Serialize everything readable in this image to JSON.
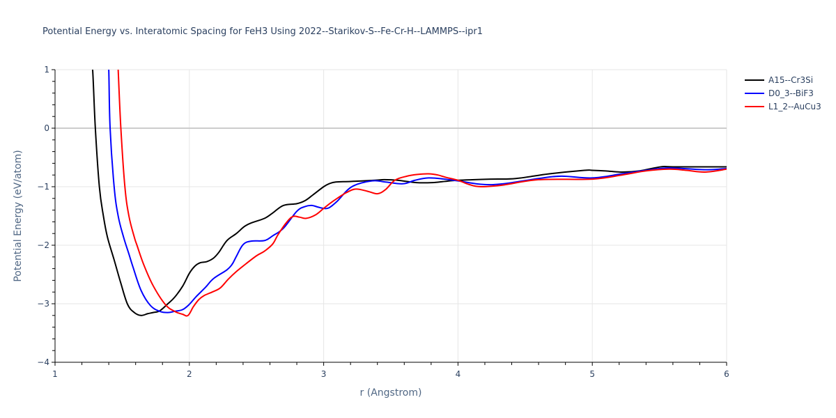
{
  "chart_data": {
    "type": "line",
    "title": "Potential Energy vs. Interatomic Spacing for FeH3 Using 2022--Starikov-S--Fe-Cr-H--LAMMPS--ipr1",
    "xlabel": "r (Angstrom)",
    "ylabel": "Potential Energy (eV/atom)",
    "xlim": [
      1,
      6
    ],
    "ylim": [
      -4,
      1
    ],
    "xticks": [
      1,
      2,
      3,
      4,
      5,
      6
    ],
    "xtick_labels": [
      "1",
      "2",
      "3",
      "4",
      "5",
      "6"
    ],
    "yticks": [
      1,
      0,
      -1,
      -2,
      -3,
      -4
    ],
    "ytick_labels": [
      "1",
      "0",
      "−1",
      "−2",
      "−3",
      "−4"
    ],
    "minor_tick_step": 0.2,
    "grid": true,
    "legend_position": "top-right-outside",
    "series": [
      {
        "name": "A15--Cr3Si",
        "color": "#000000",
        "x": [
          1.26,
          1.28,
          1.3,
          1.33,
          1.36,
          1.39,
          1.44,
          1.49,
          1.54,
          1.59,
          1.64,
          1.69,
          1.73,
          1.78,
          1.84,
          1.89,
          1.95,
          2.0,
          2.04,
          2.08,
          2.13,
          2.18,
          2.22,
          2.28,
          2.35,
          2.41,
          2.46,
          2.56,
          2.62,
          2.7,
          2.8,
          2.86,
          2.92,
          3.0,
          3.04,
          3.09,
          3.2,
          3.38,
          3.45,
          3.55,
          3.69,
          3.81,
          3.9,
          4.0,
          4.25,
          4.43,
          4.68,
          4.94,
          5.0,
          5.1,
          5.22,
          5.35,
          5.51,
          5.6,
          6.0
        ],
        "y": [
          1.5,
          1.0,
          0.0,
          -1.0,
          -1.5,
          -1.86,
          -2.25,
          -2.65,
          -3.01,
          -3.15,
          -3.2,
          -3.17,
          -3.15,
          -3.12,
          -3.0,
          -2.89,
          -2.7,
          -2.48,
          -2.36,
          -2.3,
          -2.28,
          -2.22,
          -2.12,
          -1.92,
          -1.8,
          -1.68,
          -1.62,
          -1.54,
          -1.45,
          -1.32,
          -1.29,
          -1.24,
          -1.14,
          -1.0,
          -0.95,
          -0.92,
          -0.91,
          -0.89,
          -0.88,
          -0.89,
          -0.93,
          -0.93,
          -0.91,
          -0.89,
          -0.87,
          -0.86,
          -0.78,
          -0.72,
          -0.72,
          -0.73,
          -0.75,
          -0.73,
          -0.66,
          -0.66,
          -0.66
        ]
      },
      {
        "name": "D0_3--BiF3",
        "color": "#0000ff",
        "x": [
          1.39,
          1.4,
          1.41,
          1.44,
          1.47,
          1.51,
          1.55,
          1.58,
          1.64,
          1.71,
          1.78,
          1.84,
          1.89,
          1.95,
          2.0,
          2.05,
          2.12,
          2.18,
          2.28,
          2.32,
          2.35,
          2.4,
          2.46,
          2.56,
          2.62,
          2.7,
          2.8,
          2.86,
          2.91,
          2.96,
          3.0,
          3.04,
          3.1,
          3.21,
          3.36,
          3.46,
          3.59,
          3.68,
          3.78,
          3.9,
          4.0,
          4.18,
          4.34,
          4.6,
          4.77,
          5.0,
          5.22,
          5.4,
          5.57,
          5.84,
          6.0
        ],
        "y": [
          1.5,
          1.0,
          0.0,
          -1.0,
          -1.5,
          -1.86,
          -2.15,
          -2.37,
          -2.77,
          -3.03,
          -3.13,
          -3.15,
          -3.13,
          -3.1,
          -3.01,
          -2.88,
          -2.72,
          -2.57,
          -2.42,
          -2.32,
          -2.19,
          -1.99,
          -1.93,
          -1.92,
          -1.84,
          -1.71,
          -1.42,
          -1.34,
          -1.32,
          -1.35,
          -1.37,
          -1.36,
          -1.25,
          -1.0,
          -0.9,
          -0.92,
          -0.95,
          -0.89,
          -0.85,
          -0.87,
          -0.9,
          -0.96,
          -0.95,
          -0.86,
          -0.82,
          -0.85,
          -0.78,
          -0.72,
          -0.68,
          -0.71,
          -0.69
        ]
      },
      {
        "name": "L1_2--AuCu3",
        "color": "#ff0000",
        "x": [
          1.46,
          1.47,
          1.49,
          1.52,
          1.55,
          1.59,
          1.61,
          1.66,
          1.73,
          1.82,
          1.89,
          1.95,
          1.99,
          2.03,
          2.07,
          2.11,
          2.17,
          2.23,
          2.29,
          2.35,
          2.42,
          2.5,
          2.56,
          2.62,
          2.66,
          2.72,
          2.77,
          2.82,
          2.87,
          2.94,
          3.0,
          3.05,
          3.1,
          3.17,
          3.24,
          3.33,
          3.4,
          3.46,
          3.53,
          3.62,
          3.7,
          3.78,
          3.85,
          3.91,
          4.0,
          4.08,
          4.17,
          4.34,
          4.6,
          5.0,
          5.22,
          5.4,
          5.57,
          5.7,
          5.84,
          6.0
        ],
        "y": [
          1.5,
          1.0,
          0.0,
          -1.0,
          -1.5,
          -1.86,
          -2.0,
          -2.33,
          -2.69,
          -3.01,
          -3.13,
          -3.18,
          -3.2,
          -3.05,
          -2.93,
          -2.86,
          -2.8,
          -2.73,
          -2.58,
          -2.45,
          -2.32,
          -2.18,
          -2.1,
          -1.98,
          -1.82,
          -1.62,
          -1.51,
          -1.52,
          -1.54,
          -1.48,
          -1.37,
          -1.28,
          -1.2,
          -1.1,
          -1.04,
          -1.08,
          -1.12,
          -1.05,
          -0.89,
          -0.82,
          -0.79,
          -0.78,
          -0.8,
          -0.84,
          -0.89,
          -0.96,
          -1.0,
          -0.97,
          -0.88,
          -0.87,
          -0.8,
          -0.73,
          -0.7,
          -0.72,
          -0.75,
          -0.7
        ]
      }
    ]
  }
}
